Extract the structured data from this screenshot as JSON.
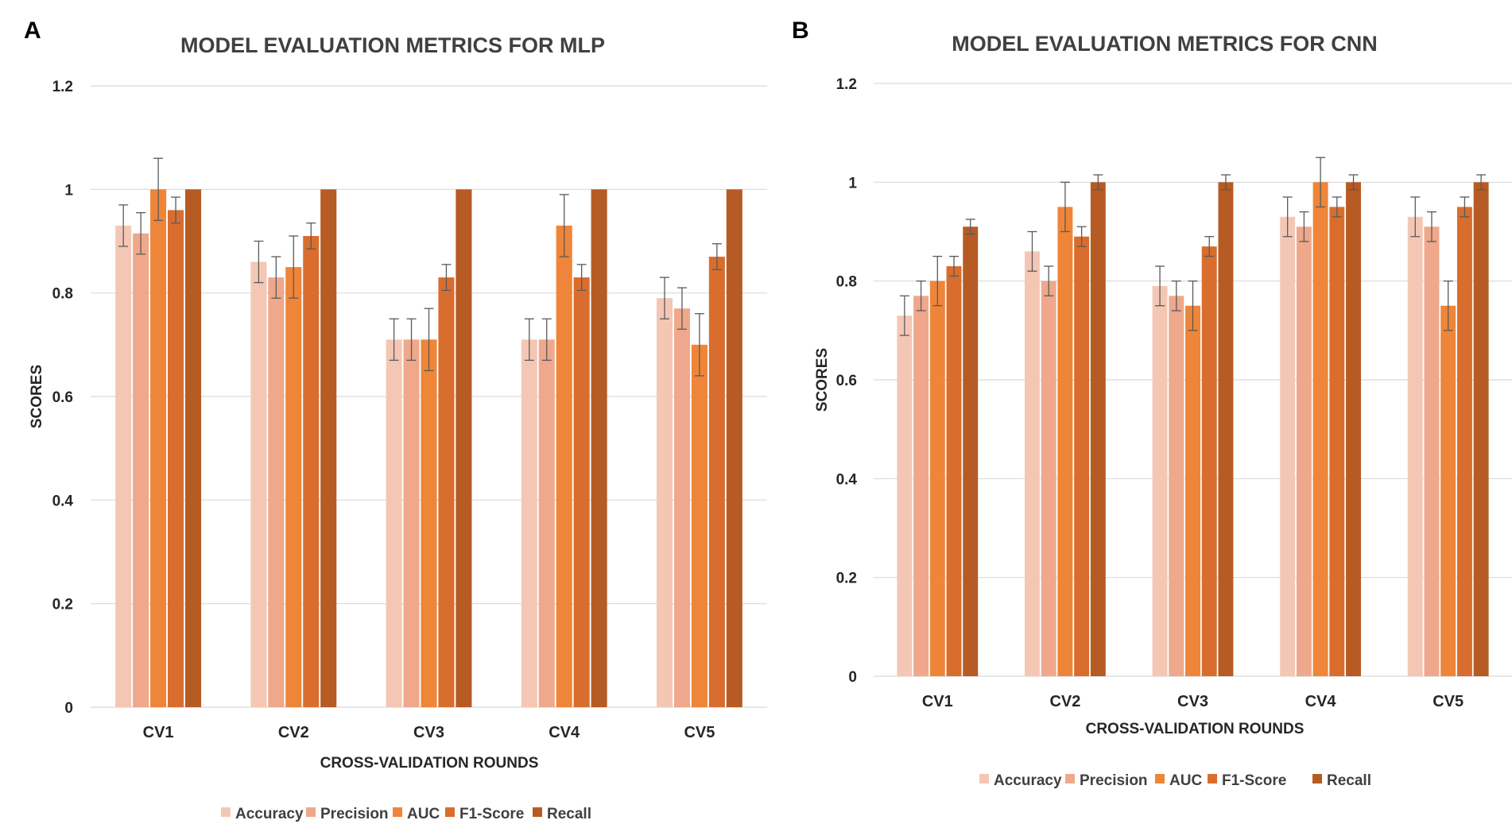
{
  "chart_data": [
    {
      "panel": "A",
      "type": "bar",
      "title": "MODEL EVALUATION METRICS FOR MLP",
      "xlabel": "CROSS-VALIDATION ROUNDS",
      "ylabel": "SCORES",
      "ylim": [
        0,
        1.2
      ],
      "yticks": [
        "0",
        "0.2",
        "0.4",
        "0.6",
        "0.8",
        "1",
        "1.2"
      ],
      "categories": [
        "CV1",
        "CV2",
        "CV3",
        "CV4",
        "CV5"
      ],
      "grid": true,
      "legend": "bottom",
      "series": [
        {
          "name": "Accuracy",
          "color": "#F4C7B5",
          "values": [
            0.93,
            0.86,
            0.71,
            0.71,
            0.79
          ],
          "errors": [
            0.04,
            0.04,
            0.04,
            0.04,
            0.04
          ]
        },
        {
          "name": "Precision",
          "color": "#EFA88B",
          "values": [
            0.915,
            0.83,
            0.71,
            0.71,
            0.77
          ],
          "errors": [
            0.04,
            0.04,
            0.04,
            0.04,
            0.04
          ]
        },
        {
          "name": "AUC",
          "color": "#EE8538",
          "values": [
            1.0,
            0.85,
            0.71,
            0.93,
            0.7
          ],
          "errors": [
            0.06,
            0.06,
            0.06,
            0.06,
            0.06
          ]
        },
        {
          "name": "F1-Score",
          "color": "#D96D2E",
          "values": [
            0.96,
            0.91,
            0.83,
            0.83,
            0.87
          ],
          "errors": [
            0.025,
            0.025,
            0.025,
            0.025,
            0.025
          ]
        },
        {
          "name": "Recall",
          "color": "#B65B24",
          "values": [
            1.0,
            1.0,
            1.0,
            1.0,
            1.0
          ],
          "errors": [
            0,
            0,
            0,
            0,
            0
          ]
        }
      ]
    },
    {
      "panel": "B",
      "type": "bar",
      "title": "MODEL EVALUATION METRICS FOR CNN",
      "xlabel": "CROSS-VALIDATION ROUNDS",
      "ylabel": "SCORES",
      "ylim": [
        0,
        1.2
      ],
      "yticks": [
        "0",
        "0.2",
        "0.4",
        "0.6",
        "0.8",
        "1",
        "1.2"
      ],
      "categories": [
        "CV1",
        "CV2",
        "CV3",
        "CV4",
        "CV5"
      ],
      "grid": true,
      "legend": "bottom",
      "series": [
        {
          "name": "Accuracy",
          "color": "#F4C7B5",
          "values": [
            0.73,
            0.86,
            0.79,
            0.93,
            0.93
          ],
          "errors": [
            0.04,
            0.04,
            0.04,
            0.04,
            0.04
          ]
        },
        {
          "name": "Precision",
          "color": "#EFA88B",
          "values": [
            0.77,
            0.8,
            0.77,
            0.91,
            0.91
          ],
          "errors": [
            0.03,
            0.03,
            0.03,
            0.03,
            0.03
          ]
        },
        {
          "name": "AUC",
          "color": "#EE8538",
          "values": [
            0.8,
            0.95,
            0.75,
            1.0,
            0.75
          ],
          "errors": [
            0.05,
            0.05,
            0.05,
            0.05,
            0.05
          ]
        },
        {
          "name": "F1-Score",
          "color": "#D96D2E",
          "values": [
            0.83,
            0.89,
            0.87,
            0.95,
            0.95
          ],
          "errors": [
            0.02,
            0.02,
            0.02,
            0.02,
            0.02
          ]
        },
        {
          "name": "Recall",
          "color": "#B65B24",
          "values": [
            0.91,
            1.0,
            1.0,
            1.0,
            1.0
          ],
          "errors": [
            0.015,
            0.015,
            0.015,
            0.015,
            0.015
          ]
        }
      ]
    }
  ]
}
